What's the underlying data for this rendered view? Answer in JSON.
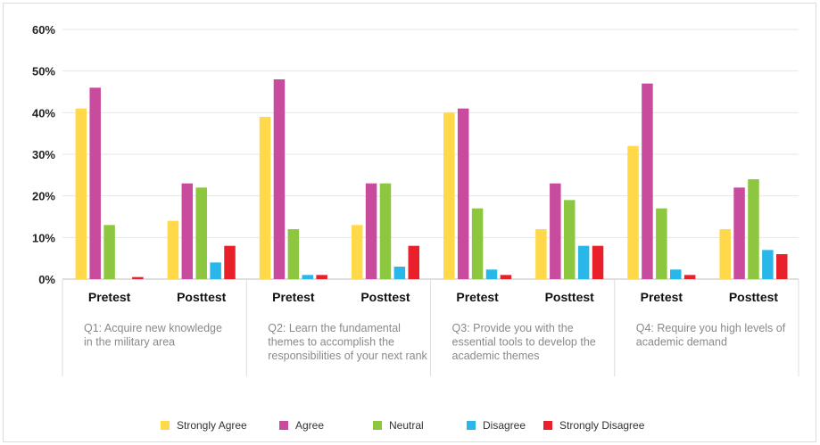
{
  "chart_data": {
    "type": "bar",
    "ylim": [
      0,
      60
    ],
    "yticks": [
      "0%",
      "10%",
      "20%",
      "30%",
      "40%",
      "50%",
      "60%"
    ],
    "grid": true,
    "legend_position": "bottom",
    "groups": [
      {
        "question_lines": [
          "Q1:  Acquire new knowledge",
          "in the military area"
        ],
        "categories": [
          "Pretest",
          "Posttest"
        ]
      },
      {
        "question_lines": [
          "Q2: Learn the fundamental",
          "themes to accomplish the",
          "responsibilities of your next rank"
        ],
        "categories": [
          "Pretest",
          "Posttest"
        ]
      },
      {
        "question_lines": [
          "Q3: Provide you with the",
          "essential tools to develop the",
          "academic themes"
        ],
        "categories": [
          "Pretest",
          "Posttest"
        ]
      },
      {
        "question_lines": [
          "Q4: Require you high levels of",
          "academic demand"
        ],
        "categories": [
          "Pretest",
          "Posttest"
        ]
      }
    ],
    "categories": [
      "Q1 Pretest",
      "Q1 Posttest",
      "Q2 Pretest",
      "Q2 Posttest",
      "Q3 Pretest",
      "Q3 Posttest",
      "Q4 Pretest",
      "Q4 Posttest"
    ],
    "series": [
      {
        "name": "Strongly Agree",
        "color": "#FFD94A",
        "values": [
          41,
          14,
          39,
          13,
          40,
          12,
          32,
          12
        ]
      },
      {
        "name": "Agree",
        "color": "#C94B9E",
        "values": [
          46,
          23,
          48,
          23,
          41,
          23,
          47,
          22
        ]
      },
      {
        "name": "Neutral",
        "color": "#8DC63F",
        "values": [
          13,
          22,
          12,
          23,
          17,
          19,
          17,
          24
        ]
      },
      {
        "name": "Disagree",
        "color": "#29B6E8",
        "values": [
          0,
          4,
          1,
          3,
          2.3,
          8,
          2.3,
          7
        ]
      },
      {
        "name": "Strongly Disagree",
        "color": "#E8202A",
        "values": [
          0.5,
          8,
          1,
          8,
          1,
          8,
          1,
          6
        ]
      }
    ]
  }
}
